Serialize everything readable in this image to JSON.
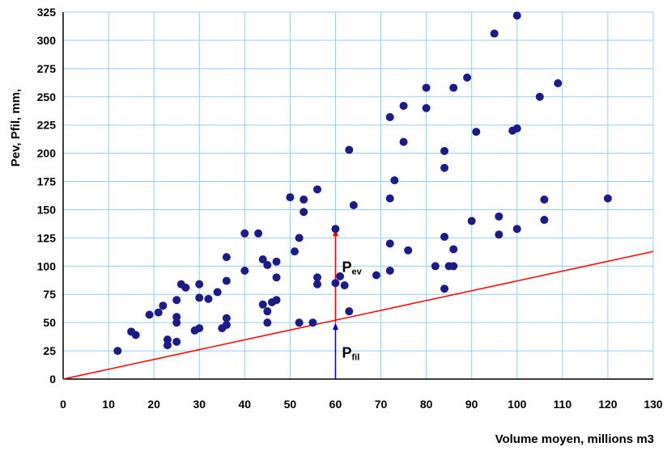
{
  "chart_data": {
    "type": "scatter",
    "xlabel": "Volume moyen, millions m3",
    "ylabel": "Pev, Pfil, mm,",
    "xlim": [
      0,
      130
    ],
    "ylim": [
      0,
      325
    ],
    "xticks": [
      "0",
      "10",
      "20",
      "30",
      "40",
      "50",
      "60",
      "70",
      "80",
      "90",
      "100",
      "110",
      "120",
      "130"
    ],
    "yticks": [
      "0",
      "25",
      "50",
      "75",
      "100",
      "125",
      "150",
      "175",
      "200",
      "225",
      "250",
      "275",
      "300",
      "325"
    ],
    "grid": true,
    "points": [
      [
        12,
        25
      ],
      [
        15,
        42
      ],
      [
        16,
        39
      ],
      [
        19,
        57
      ],
      [
        21,
        59
      ],
      [
        22,
        65
      ],
      [
        23,
        35
      ],
      [
        23,
        30
      ],
      [
        25,
        70
      ],
      [
        25,
        55
      ],
      [
        25,
        50
      ],
      [
        25,
        33
      ],
      [
        26,
        84
      ],
      [
        27,
        81
      ],
      [
        29,
        43
      ],
      [
        30,
        84
      ],
      [
        30,
        72
      ],
      [
        30,
        45
      ],
      [
        32,
        71
      ],
      [
        34,
        77
      ],
      [
        35,
        45
      ],
      [
        36,
        108
      ],
      [
        36,
        87
      ],
      [
        36,
        54
      ],
      [
        36,
        48
      ],
      [
        40,
        129
      ],
      [
        40,
        96
      ],
      [
        43,
        129
      ],
      [
        44,
        106
      ],
      [
        44,
        66
      ],
      [
        45,
        101
      ],
      [
        45,
        60
      ],
      [
        45,
        50
      ],
      [
        46,
        68
      ],
      [
        47,
        104
      ],
      [
        47,
        90
      ],
      [
        47,
        70
      ],
      [
        50,
        161
      ],
      [
        51,
        113
      ],
      [
        52,
        125
      ],
      [
        52,
        50
      ],
      [
        53,
        159
      ],
      [
        53,
        148
      ],
      [
        55,
        50
      ],
      [
        56,
        168
      ],
      [
        56,
        90
      ],
      [
        56,
        84
      ],
      [
        60,
        133
      ],
      [
        60,
        85
      ],
      [
        61,
        91
      ],
      [
        62,
        83
      ],
      [
        63,
        203
      ],
      [
        63,
        60
      ],
      [
        64,
        154
      ],
      [
        69,
        92
      ],
      [
        72,
        232
      ],
      [
        72,
        160
      ],
      [
        72,
        120
      ],
      [
        72,
        96
      ],
      [
        73,
        176
      ],
      [
        75,
        242
      ],
      [
        75,
        210
      ],
      [
        76,
        114
      ],
      [
        80,
        258
      ],
      [
        80,
        240
      ],
      [
        82,
        100
      ],
      [
        84,
        202
      ],
      [
        84,
        187
      ],
      [
        84,
        126
      ],
      [
        84,
        80
      ],
      [
        85,
        100
      ],
      [
        86,
        258
      ],
      [
        86,
        115
      ],
      [
        86,
        100
      ],
      [
        89,
        267
      ],
      [
        90,
        140
      ],
      [
        91,
        219
      ],
      [
        95,
        306
      ],
      [
        96,
        144
      ],
      [
        96,
        128
      ],
      [
        99,
        220
      ],
      [
        100,
        322
      ],
      [
        100,
        222
      ],
      [
        100,
        133
      ],
      [
        105,
        250
      ],
      [
        106,
        159
      ],
      [
        106,
        141
      ],
      [
        109,
        262
      ],
      [
        120,
        160
      ]
    ],
    "line": {
      "name": "Pfil",
      "from": [
        0,
        0
      ],
      "to": [
        130,
        113
      ]
    },
    "annotations": [
      {
        "text": "P",
        "sub": "ev",
        "x": 60,
        "from": 50,
        "to": 133
      },
      {
        "text": "P",
        "sub": "fil",
        "x": 60,
        "from": 0,
        "to": 50
      }
    ],
    "colors": {
      "points": "#1b1b8a",
      "line": "#ff0000",
      "grid": "#99ccee",
      "ev_arrow": "#ff0000",
      "fil_arrow": "#0000cc"
    }
  }
}
